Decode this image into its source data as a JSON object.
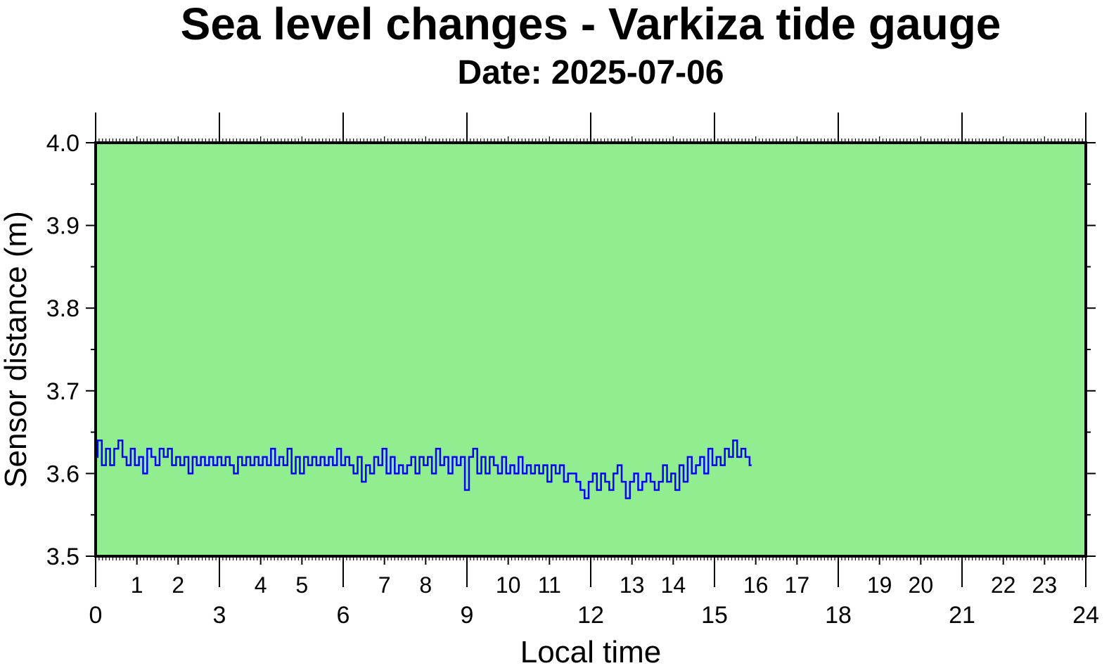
{
  "chart_data": {
    "type": "line",
    "title": "Sea level changes - Varkiza tide gauge",
    "subtitle": "Date: 2025-07-06",
    "xlabel": "Local time",
    "ylabel": "Sensor distance (m)",
    "xlim": [
      0,
      24
    ],
    "ylim": [
      3.5,
      4.0
    ],
    "x_major_ticks": [
      "0",
      "3",
      "6",
      "9",
      "12",
      "15",
      "18",
      "21",
      "24"
    ],
    "x_minor_ticks": [
      "1",
      "2",
      "4",
      "5",
      "7",
      "8",
      "10",
      "11",
      "13",
      "14",
      "16",
      "17",
      "19",
      "20",
      "22",
      "23"
    ],
    "y_ticks": [
      "3.5",
      "3.6",
      "3.7",
      "3.8",
      "3.9",
      "4.0"
    ],
    "plot_background": "#90ee90",
    "line_color": "#0000ff",
    "series": [
      {
        "x": [
          0.0,
          0.1,
          0.2,
          0.3,
          0.4,
          0.5,
          0.6,
          0.7,
          0.8,
          0.9,
          1.0,
          1.1,
          1.2,
          1.3,
          1.4,
          1.5,
          1.6,
          1.7,
          1.8,
          1.9,
          2.0,
          2.1,
          2.2,
          2.3,
          2.4,
          2.5,
          2.6,
          2.7,
          2.8,
          2.9,
          3.0,
          3.1,
          3.2,
          3.3,
          3.4,
          3.5,
          3.6,
          3.7,
          3.8,
          3.9,
          4.0,
          4.1,
          4.2,
          4.3,
          4.4,
          4.5,
          4.6,
          4.7,
          4.8,
          4.9,
          5.0,
          5.1,
          5.2,
          5.3,
          5.4,
          5.5,
          5.6,
          5.7,
          5.8,
          5.9,
          6.0,
          6.1,
          6.2,
          6.3,
          6.4,
          6.5,
          6.6,
          6.7,
          6.8,
          6.9,
          7.0,
          7.1,
          7.2,
          7.3,
          7.4,
          7.5,
          7.6,
          7.7,
          7.8,
          7.9,
          8.0,
          8.1,
          8.2,
          8.3,
          8.4,
          8.5,
          8.6,
          8.7,
          8.8,
          8.9,
          9.0,
          9.1,
          9.2,
          9.3,
          9.4,
          9.5,
          9.6,
          9.7,
          9.8,
          9.9,
          10.0,
          10.1,
          10.2,
          10.3,
          10.4,
          10.5,
          10.6,
          10.7,
          10.8,
          10.9,
          11.0,
          11.1,
          11.2,
          11.3,
          11.4,
          11.5,
          11.6,
          11.7,
          11.8,
          11.9,
          12.0,
          12.1,
          12.2,
          12.3,
          12.4,
          12.5,
          12.6,
          12.7,
          12.8,
          12.9,
          13.0,
          13.1,
          13.2,
          13.3,
          13.4,
          13.5,
          13.6,
          13.7,
          13.8,
          13.9,
          14.0,
          14.1,
          14.2,
          14.3,
          14.4,
          14.5,
          14.6,
          14.7,
          14.8,
          14.9,
          15.0,
          15.1,
          15.2,
          15.3,
          15.4,
          15.5,
          15.6,
          15.7,
          15.8,
          15.9
        ],
        "y": [
          3.62,
          3.64,
          3.61,
          3.63,
          3.61,
          3.63,
          3.64,
          3.62,
          3.61,
          3.63,
          3.61,
          3.62,
          3.6,
          3.63,
          3.62,
          3.61,
          3.63,
          3.62,
          3.63,
          3.61,
          3.62,
          3.61,
          3.62,
          3.6,
          3.62,
          3.61,
          3.62,
          3.61,
          3.62,
          3.61,
          3.62,
          3.61,
          3.62,
          3.61,
          3.6,
          3.62,
          3.61,
          3.62,
          3.61,
          3.62,
          3.61,
          3.62,
          3.61,
          3.63,
          3.61,
          3.62,
          3.61,
          3.63,
          3.6,
          3.62,
          3.6,
          3.62,
          3.61,
          3.62,
          3.61,
          3.62,
          3.61,
          3.62,
          3.61,
          3.63,
          3.61,
          3.62,
          3.61,
          3.6,
          3.62,
          3.59,
          3.61,
          3.6,
          3.62,
          3.61,
          3.63,
          3.6,
          3.62,
          3.6,
          3.61,
          3.6,
          3.61,
          3.62,
          3.6,
          3.62,
          3.61,
          3.62,
          3.6,
          3.63,
          3.61,
          3.62,
          3.6,
          3.62,
          3.61,
          3.62,
          3.58,
          3.62,
          3.63,
          3.6,
          3.62,
          3.6,
          3.62,
          3.61,
          3.6,
          3.62,
          3.6,
          3.61,
          3.6,
          3.62,
          3.6,
          3.61,
          3.6,
          3.61,
          3.6,
          3.61,
          3.59,
          3.61,
          3.6,
          3.61,
          3.59,
          3.6,
          3.6,
          3.59,
          3.58,
          3.57,
          3.59,
          3.6,
          3.58,
          3.6,
          3.59,
          3.58,
          3.6,
          3.61,
          3.59,
          3.57,
          3.59,
          3.6,
          3.58,
          3.59,
          3.6,
          3.59,
          3.58,
          3.59,
          3.61,
          3.59,
          3.6,
          3.58,
          3.61,
          3.59,
          3.62,
          3.6,
          3.61,
          3.62,
          3.6,
          3.63,
          3.61,
          3.62,
          3.61,
          3.63,
          3.62,
          3.64,
          3.62,
          3.63,
          3.62,
          3.61
        ]
      }
    ]
  }
}
